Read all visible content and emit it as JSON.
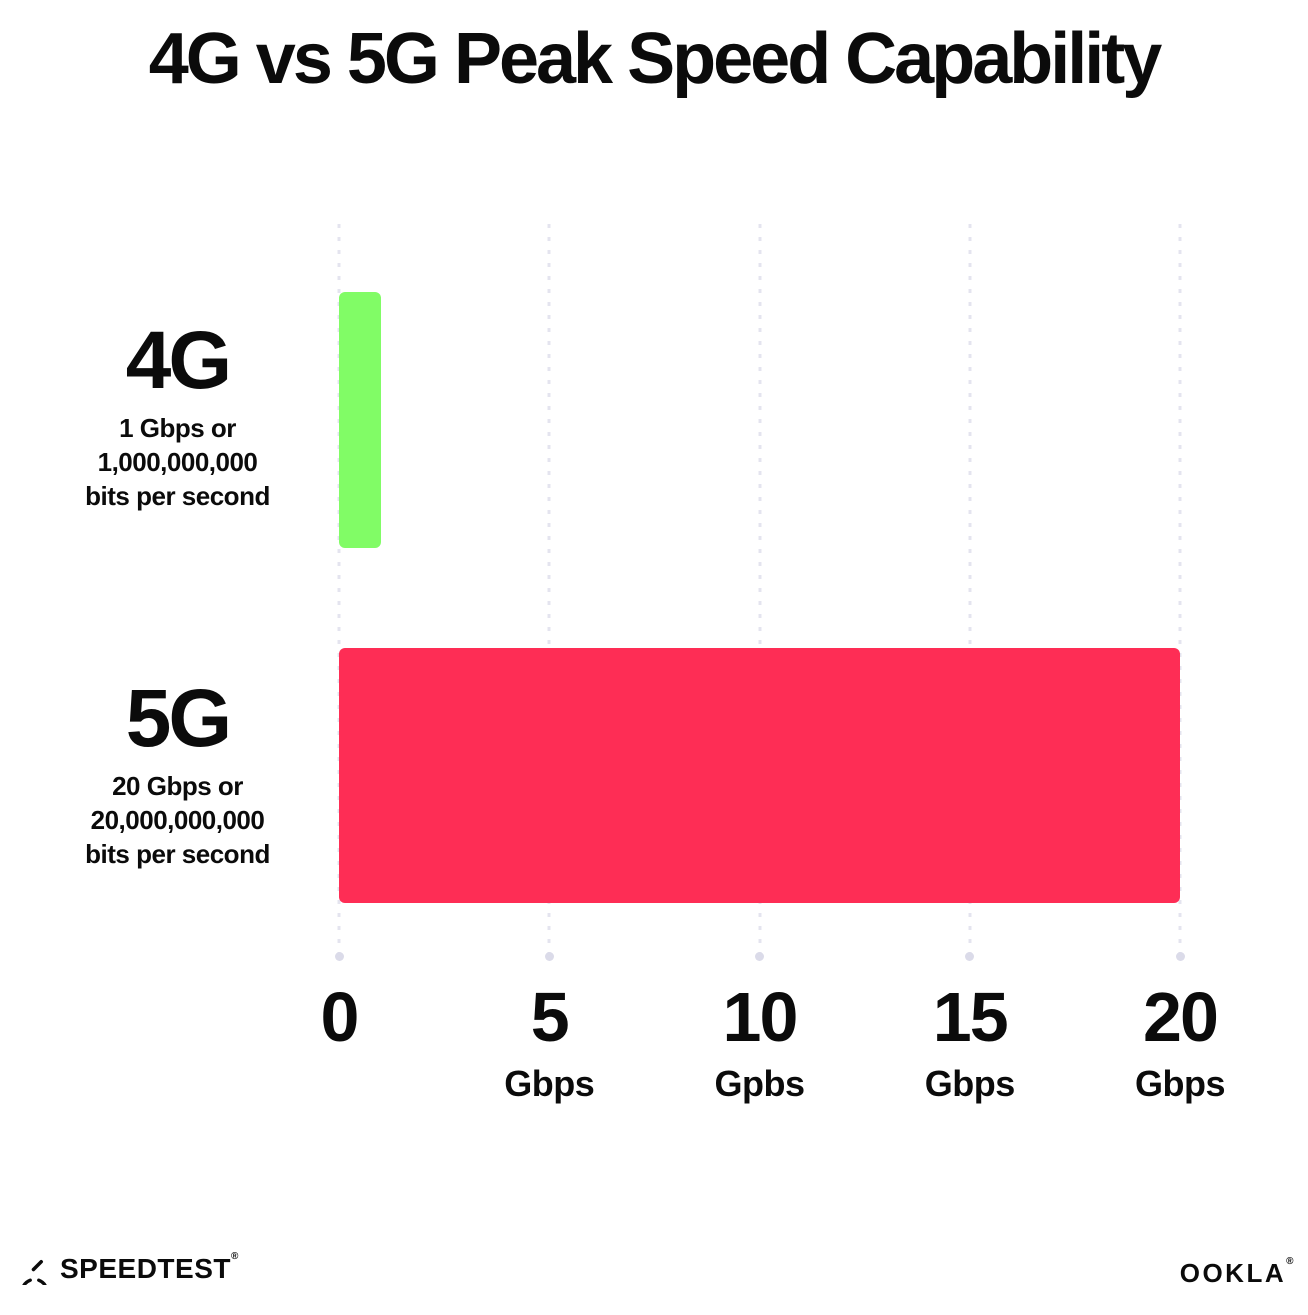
{
  "title": "4G vs 5G Peak Speed Capability",
  "chart_data": {
    "type": "bar",
    "orientation": "horizontal",
    "title": "4G vs 5G Peak Speed Capability",
    "categories": [
      "4G",
      "5G"
    ],
    "values": [
      1,
      20
    ],
    "bar_colors": [
      "#81FC66",
      "#FE2D55"
    ],
    "category_sublabels": [
      [
        "1 Gbps or",
        "1,000,000,000",
        "bits per second"
      ],
      [
        "20 Gbps or",
        "20,000,000,000",
        "bits per second"
      ]
    ],
    "x_ticks": [
      {
        "value": "0",
        "unit": ""
      },
      {
        "value": "5",
        "unit": "Gbps"
      },
      {
        "value": "10",
        "unit": "Gpbs"
      },
      {
        "value": "15",
        "unit": "Gbps"
      },
      {
        "value": "20",
        "unit": "Gbps"
      }
    ],
    "xlim": [
      0,
      20
    ],
    "grid": "vertical-dotted",
    "gridline_color": "#E4E4EF",
    "legend": "none"
  },
  "footer": {
    "speedtest_label": "SPEEDTEST",
    "speedtest_tm": "®",
    "ookla_label": "OOKLA",
    "ookla_tm": "®"
  }
}
